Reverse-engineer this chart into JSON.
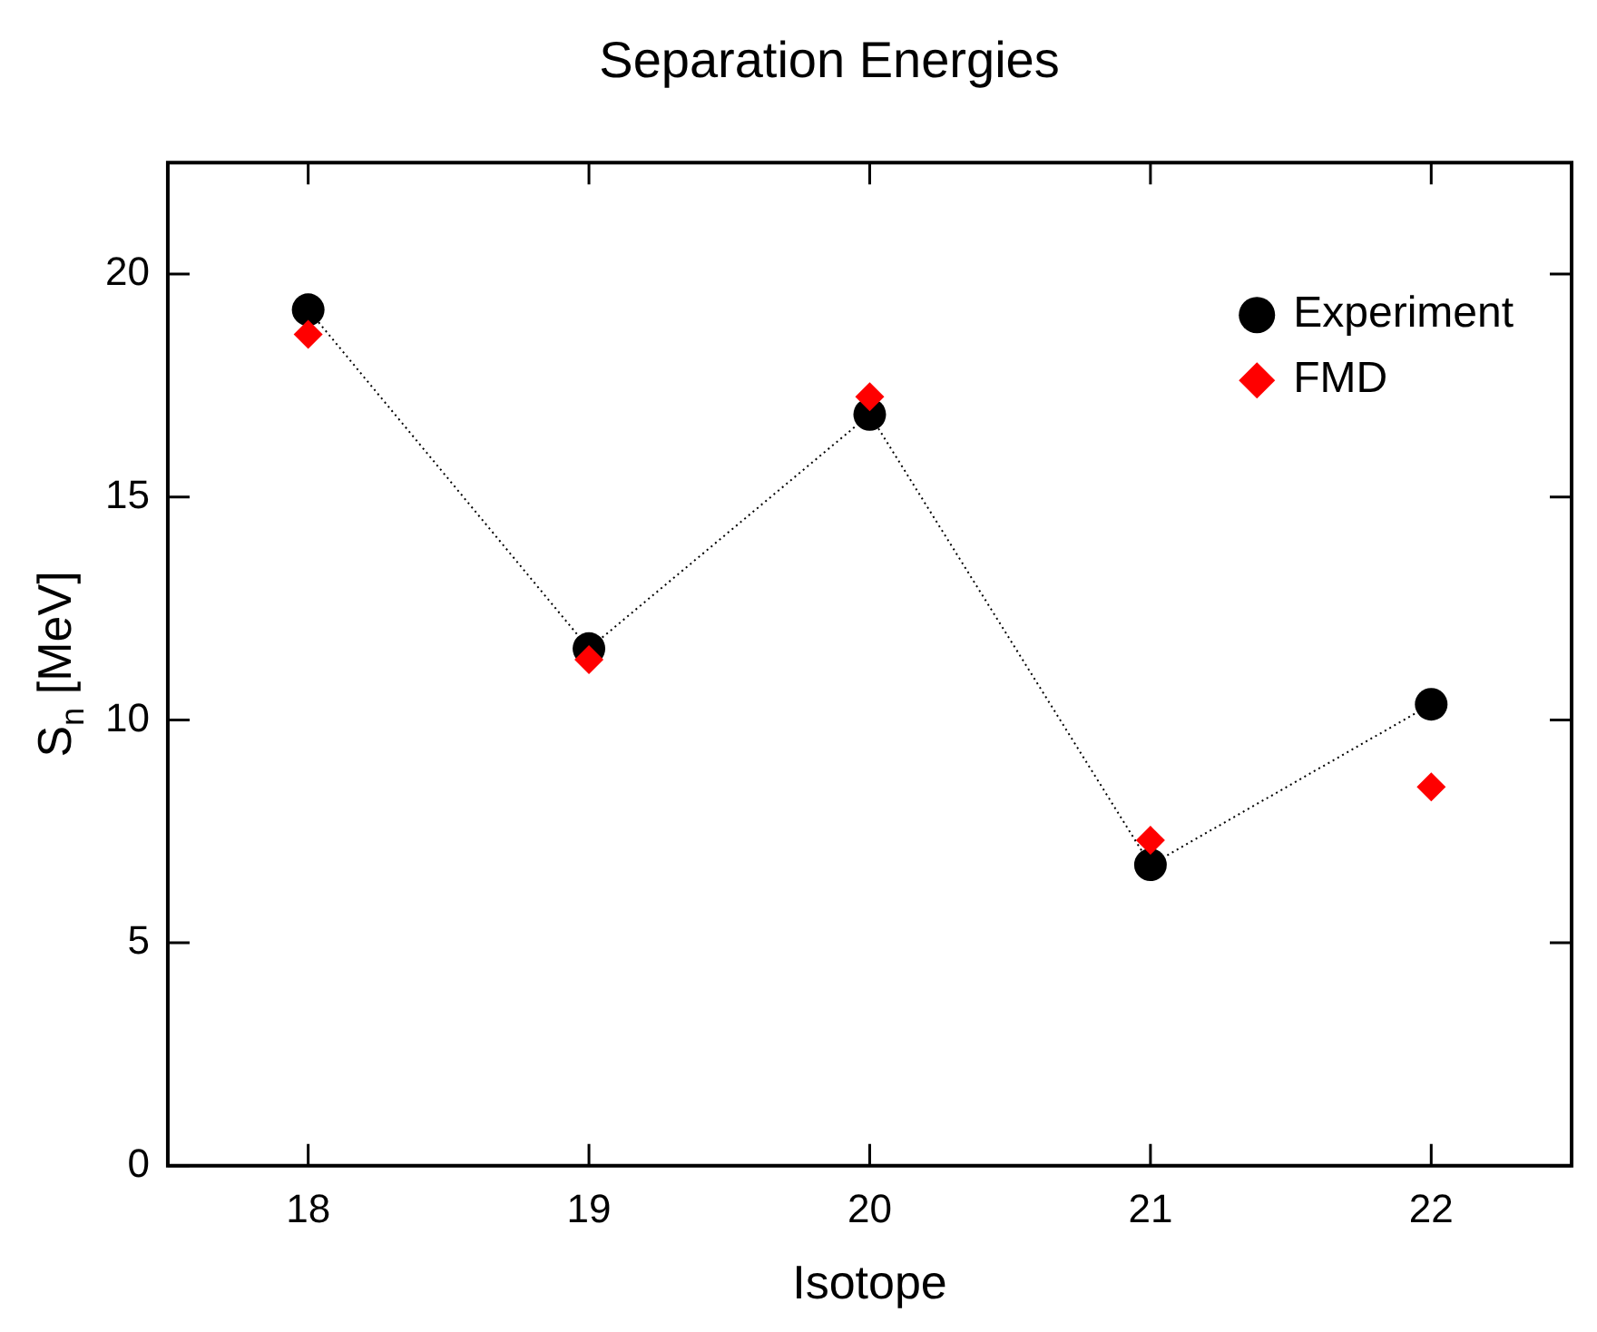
{
  "chart_data": {
    "type": "scatter",
    "title": "Separation Energies",
    "xlabel": "Isotope",
    "ylabel": "S$_{n}$ [MeV]",
    "x": [
      18,
      19,
      20,
      21,
      22
    ],
    "series": [
      {
        "name": "Experiment",
        "type": "line",
        "color": "#000000",
        "values": [
          19.2,
          11.6,
          16.85,
          6.75,
          10.35
        ],
        "marker": "circle",
        "line_style": "dotted"
      },
      {
        "name": "FMD",
        "color": "#ff0000",
        "values": [
          18.65,
          11.35,
          17.25,
          7.3,
          8.5
        ],
        "marker": "diamond"
      }
    ],
    "xlim": [
      17.5,
      22.5
    ],
    "xticks": [
      18,
      19,
      20,
      21,
      22
    ],
    "ylim": [
      0,
      22.5
    ],
    "yticks": [
      0,
      5,
      10,
      15,
      20
    ],
    "grid": false,
    "legend": "top right"
  }
}
